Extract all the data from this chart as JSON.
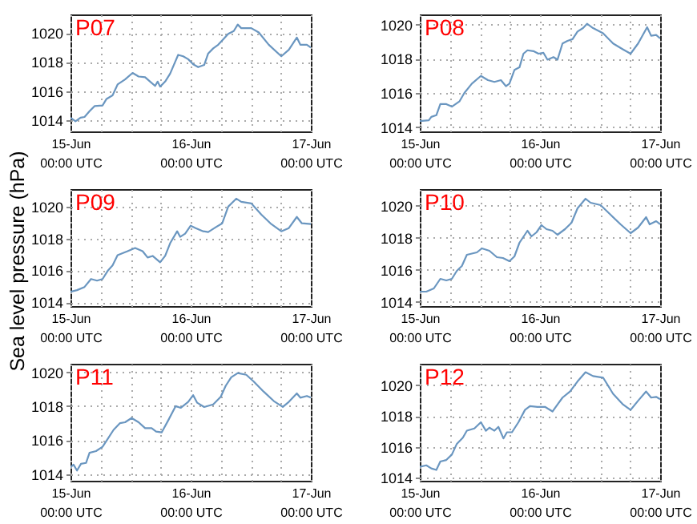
{
  "chart_data": [
    {
      "type": "line",
      "title": "P07",
      "xlim": [
        "--06-15T00:00",
        "--06-17T00:00"
      ],
      "xticks": [
        {
          "value": "--06-15T00:00",
          "label": "15-Jun\n00:00 UTC"
        },
        {
          "value": "--06-15T06:00",
          "label": null
        },
        {
          "value": "--06-15T12:00",
          "label": null
        },
        {
          "value": "--06-15T18:00",
          "label": null
        },
        {
          "value": "--06-16T00:00",
          "label": "16-Jun\n00:00 UTC"
        },
        {
          "value": "--06-16T06:00",
          "label": null
        },
        {
          "value": "--06-16T12:00",
          "label": null
        },
        {
          "value": "--06-16T18:00",
          "label": null
        },
        {
          "value": "--06-17T00:00",
          "label": "17-Jun\n00:00 UTC"
        }
      ],
      "ylim": [
        1013.2,
        1021.3
      ],
      "yticks": [
        1014,
        1016,
        1018,
        1020
      ],
      "grid": true,
      "x": [
        "--06-15T00:00",
        "--06-15T01:00",
        "--06-15T02:00",
        "--06-15T02:48",
        "--06-15T03:48",
        "--06-15T04:48",
        "--06-15T06:24",
        "--06-15T07:12",
        "--06-15T08:24",
        "--06-15T09:24",
        "--06-15T10:54",
        "--06-15T12:24",
        "--06-15T13:36",
        "--06-15T14:54",
        "--06-15T15:54",
        "--06-15T16:54",
        "--06-15T17:24",
        "--06-15T17:54",
        "--06-15T18:54",
        "--06-15T19:54",
        "--06-15T20:42",
        "--06-15T21:30",
        "--06-15T22:30",
        "--06-15T23:30",
        "--06-16T00:30",
        "--06-16T01:30",
        "--06-16T02:42",
        "--06-16T03:30",
        "--06-16T04:30",
        "--06-16T05:30",
        "--06-16T06:42",
        "--06-16T07:30",
        "--06-16T08:36",
        "--06-16T09:24",
        "--06-16T10:06",
        "--06-16T12:06",
        "--06-16T13:36",
        "--06-16T15:36",
        "--06-16T18:06",
        "--06-16T19:36",
        "--06-16T21:12",
        "--06-16T21:54",
        "--06-16T23:12",
        "--06-17T00:00"
      ],
      "series": [
        {
          "color": "#6a96c0",
          "values": [
            1014.15,
            1013.9,
            1014.15,
            1014.2,
            1014.6,
            1014.95,
            1015.0,
            1015.45,
            1015.7,
            1016.45,
            1016.8,
            1017.25,
            1017.0,
            1016.95,
            1016.65,
            1016.35,
            1016.65,
            1016.3,
            1016.65,
            1017.2,
            1017.85,
            1018.5,
            1018.4,
            1018.2,
            1017.85,
            1017.65,
            1017.8,
            1018.6,
            1018.95,
            1019.2,
            1019.65,
            1019.95,
            1020.15,
            1020.6,
            1020.35,
            1020.35,
            1020.05,
            1019.2,
            1018.4,
            1018.85,
            1019.7,
            1019.2,
            1019.2,
            1019.0
          ]
        }
      ]
    },
    {
      "type": "line",
      "title": "P08",
      "xlim": [
        "--06-15T00:00",
        "--06-17T00:00"
      ],
      "xticks": [
        {
          "value": "--06-15T00:00",
          "label": "15-Jun\n00:00 UTC"
        },
        {
          "value": "--06-15T06:00",
          "label": null
        },
        {
          "value": "--06-15T12:00",
          "label": null
        },
        {
          "value": "--06-15T18:00",
          "label": null
        },
        {
          "value": "--06-16T00:00",
          "label": "16-Jun\n00:00 UTC"
        },
        {
          "value": "--06-16T06:00",
          "label": null
        },
        {
          "value": "--06-16T12:00",
          "label": null
        },
        {
          "value": "--06-16T18:00",
          "label": null
        },
        {
          "value": "--06-17T00:00",
          "label": "17-Jun\n00:00 UTC"
        }
      ],
      "ylim": [
        1013.75,
        1020.6
      ],
      "yticks": [
        1014,
        1016,
        1018,
        1020
      ],
      "grid": true,
      "x": [
        "--06-15T00:00",
        "--06-15T01:48",
        "--06-15T02:18",
        "--06-15T03:18",
        "--06-15T04:06",
        "--06-15T05:18",
        "--06-15T06:24",
        "--06-15T07:54",
        "--06-15T08:54",
        "--06-15T10:24",
        "--06-15T12:12",
        "--06-15T13:36",
        "--06-15T14:54",
        "--06-15T16:12",
        "--06-15T17:12",
        "--06-15T17:54",
        "--06-15T18:54",
        "--06-15T19:54",
        "--06-15T20:42",
        "--06-15T21:30",
        "--06-15T22:42",
        "--06-15T23:42",
        "--06-16T00:42",
        "--06-16T01:30",
        "--06-16T02:42",
        "--06-16T03:30",
        "--06-16T04:30",
        "--06-16T05:30",
        "--06-16T06:30",
        "--06-16T07:30",
        "--06-16T08:36",
        "--06-16T09:24",
        "--06-16T10:36",
        "--06-16T12:36",
        "--06-16T14:36",
        "--06-16T16:36",
        "--06-16T18:06",
        "--06-16T19:36",
        "--06-16T21:24",
        "--06-16T22:12",
        "--06-16T23:12",
        "--06-17T00:00"
      ],
      "series": [
        {
          "color": "#6a96c0",
          "values": [
            1014.35,
            1014.4,
            1014.6,
            1014.7,
            1015.35,
            1015.35,
            1015.2,
            1015.5,
            1016.0,
            1016.55,
            1017.0,
            1016.75,
            1016.65,
            1016.75,
            1016.4,
            1016.55,
            1017.35,
            1017.5,
            1018.3,
            1018.5,
            1018.45,
            1018.3,
            1018.35,
            1017.95,
            1018.1,
            1017.95,
            1018.9,
            1019.05,
            1019.15,
            1019.6,
            1019.8,
            1020.05,
            1019.8,
            1019.5,
            1018.9,
            1018.55,
            1018.3,
            1018.9,
            1019.85,
            1019.35,
            1019.4,
            1019.2
          ]
        }
      ]
    },
    {
      "type": "line",
      "title": "P09",
      "ylabel": "Sea level pressure (hPa)",
      "xlim": [
        "--06-15T00:00",
        "--06-17T00:00"
      ],
      "xticks": [
        {
          "value": "--06-15T00:00",
          "label": "15-Jun\n00:00 UTC"
        },
        {
          "value": "--06-15T06:00",
          "label": null
        },
        {
          "value": "--06-15T12:00",
          "label": null
        },
        {
          "value": "--06-15T18:00",
          "label": null
        },
        {
          "value": "--06-16T00:00",
          "label": "16-Jun\n00:00 UTC"
        },
        {
          "value": "--06-16T06:00",
          "label": null
        },
        {
          "value": "--06-16T12:00",
          "label": null
        },
        {
          "value": "--06-16T18:00",
          "label": null
        },
        {
          "value": "--06-17T00:00",
          "label": "17-Jun\n00:00 UTC"
        }
      ],
      "ylim": [
        1013.75,
        1021.1
      ],
      "yticks": [
        1014,
        1016,
        1018,
        1020
      ],
      "grid": true,
      "x": [
        "--06-15T00:00",
        "--06-15T01:18",
        "--06-15T02:48",
        "--06-15T04:06",
        "--06-15T05:18",
        "--06-15T06:24",
        "--06-15T07:24",
        "--06-15T08:24",
        "--06-15T09:24",
        "--06-15T11:24",
        "--06-15T12:54",
        "--06-15T14:24",
        "--06-15T15:24",
        "--06-15T16:24",
        "--06-15T17:54",
        "--06-15T18:54",
        "--06-15T19:54",
        "--06-15T21:18",
        "--06-15T21:54",
        "--06-15T22:54",
        "--06-16T00:00",
        "--06-16T01:00",
        "--06-16T02:30",
        "--06-16T03:30",
        "--06-16T05:00",
        "--06-16T06:18",
        "--06-16T07:30",
        "--06-16T09:06",
        "--06-16T10:06",
        "--06-16T12:06",
        "--06-16T14:06",
        "--06-16T16:06",
        "--06-16T18:06",
        "--06-16T19:36",
        "--06-16T21:12",
        "--06-16T22:12",
        "--06-17T00:00"
      ],
      "series": [
        {
          "color": "#6a96c0",
          "values": [
            1014.65,
            1014.75,
            1014.95,
            1015.45,
            1015.35,
            1015.45,
            1015.95,
            1016.3,
            1016.95,
            1017.2,
            1017.4,
            1017.2,
            1016.8,
            1016.9,
            1016.5,
            1016.9,
            1017.7,
            1018.45,
            1018.1,
            1018.3,
            1018.8,
            1018.65,
            1018.45,
            1018.4,
            1018.7,
            1018.95,
            1020.0,
            1020.5,
            1020.3,
            1020.2,
            1019.5,
            1018.9,
            1018.45,
            1018.65,
            1019.35,
            1018.95,
            1018.9
          ]
        }
      ]
    },
    {
      "type": "line",
      "title": "P10",
      "xlim": [
        "--06-15T00:00",
        "--06-17T00:00"
      ],
      "xticks": [
        {
          "value": "--06-15T00:00",
          "label": "15-Jun\n00:00 UTC"
        },
        {
          "value": "--06-15T06:00",
          "label": null
        },
        {
          "value": "--06-15T12:00",
          "label": null
        },
        {
          "value": "--06-15T18:00",
          "label": null
        },
        {
          "value": "--06-16T00:00",
          "label": "16-Jun\n00:00 UTC"
        },
        {
          "value": "--06-16T06:00",
          "label": null
        },
        {
          "value": "--06-16T12:00",
          "label": null
        },
        {
          "value": "--06-16T18:00",
          "label": null
        },
        {
          "value": "--06-17T00:00",
          "label": "17-Jun\n00:00 UTC"
        }
      ],
      "ylim": [
        1013.75,
        1021.05
      ],
      "yticks": [
        1014,
        1016,
        1018,
        1020
      ],
      "grid": true,
      "x": [
        "--06-15T00:00",
        "--06-15T01:18",
        "--06-15T02:48",
        "--06-15T04:06",
        "--06-15T05:18",
        "--06-15T06:24",
        "--06-15T07:24",
        "--06-15T08:24",
        "--06-15T09:24",
        "--06-15T11:24",
        "--06-15T12:24",
        "--06-15T13:54",
        "--06-15T15:24",
        "--06-15T16:36",
        "--06-15T17:54",
        "--06-15T18:54",
        "--06-15T19:54",
        "--06-15T21:30",
        "--06-15T22:18",
        "--06-15T23:18",
        "--06-16T00:18",
        "--06-16T01:18",
        "--06-16T02:30",
        "--06-16T03:30",
        "--06-16T05:00",
        "--06-16T06:18",
        "--06-16T07:30",
        "--06-16T09:06",
        "--06-16T10:06",
        "--06-16T12:06",
        "--06-16T14:06",
        "--06-16T16:06",
        "--06-16T18:06",
        "--06-16T19:36",
        "--06-16T21:12",
        "--06-16T21:54",
        "--06-16T23:12",
        "--06-17T00:00"
      ],
      "series": [
        {
          "color": "#6a96c0",
          "values": [
            1014.65,
            1014.65,
            1014.85,
            1015.45,
            1015.35,
            1015.45,
            1015.95,
            1016.25,
            1016.95,
            1017.1,
            1017.35,
            1017.2,
            1016.8,
            1016.75,
            1016.55,
            1016.85,
            1017.7,
            1018.45,
            1018.1,
            1018.35,
            1018.8,
            1018.55,
            1018.45,
            1018.2,
            1018.55,
            1018.95,
            1019.85,
            1020.45,
            1020.2,
            1020.05,
            1019.45,
            1018.85,
            1018.3,
            1018.65,
            1019.3,
            1018.85,
            1019.05,
            1018.85
          ]
        }
      ]
    },
    {
      "type": "line",
      "title": "P11",
      "xlim": [
        "--06-15T00:00",
        "--06-17T00:00"
      ],
      "xticks": [
        {
          "value": "--06-15T00:00",
          "label": "15-Jun\n00:00 UTC"
        },
        {
          "value": "--06-15T06:00",
          "label": null
        },
        {
          "value": "--06-15T12:00",
          "label": null
        },
        {
          "value": "--06-15T18:00",
          "label": null
        },
        {
          "value": "--06-16T00:00",
          "label": "16-Jun\n00:00 UTC"
        },
        {
          "value": "--06-16T06:00",
          "label": null
        },
        {
          "value": "--06-16T12:00",
          "label": null
        },
        {
          "value": "--06-16T18:00",
          "label": null
        },
        {
          "value": "--06-17T00:00",
          "label": "17-Jun\n00:00 UTC"
        }
      ],
      "ylim": [
        1013.6,
        1020.5
      ],
      "yticks": [
        1014,
        1016,
        1018,
        1020
      ],
      "grid": true,
      "x": [
        "--06-15T00:00",
        "--06-15T00:36",
        "--06-15T01:18",
        "--06-15T02:06",
        "--06-15T03:06",
        "--06-15T03:48",
        "--06-15T05:06",
        "--06-15T06:24",
        "--06-15T07:24",
        "--06-15T08:36",
        "--06-15T09:54",
        "--06-15T10:54",
        "--06-15T12:12",
        "--06-15T13:36",
        "--06-15T14:54",
        "--06-15T16:12",
        "--06-15T17:06",
        "--06-15T18:12",
        "--06-15T19:30",
        "--06-15T21:00",
        "--06-15T22:00",
        "--06-15T23:30",
        "--06-16T00:30",
        "--06-16T01:18",
        "--06-16T02:42",
        "--06-16T04:30",
        "--06-16T06:00",
        "--06-16T07:00",
        "--06-16T08:06",
        "--06-16T09:24",
        "--06-16T11:06",
        "--06-16T12:36",
        "--06-16T14:36",
        "--06-16T16:36",
        "--06-16T18:24",
        "--06-16T19:36",
        "--06-16T21:12",
        "--06-16T21:54",
        "--06-16T23:12",
        "--06-17T00:00"
      ],
      "series": [
        {
          "color": "#6a96c0",
          "values": [
            1014.4,
            1014.55,
            1014.2,
            1014.6,
            1014.65,
            1015.25,
            1015.35,
            1015.6,
            1016.05,
            1016.6,
            1017.0,
            1017.05,
            1017.3,
            1017.05,
            1016.7,
            1016.7,
            1016.5,
            1016.45,
            1017.15,
            1018.0,
            1017.9,
            1018.25,
            1018.65,
            1018.2,
            1017.95,
            1018.1,
            1018.55,
            1019.2,
            1019.7,
            1019.95,
            1019.85,
            1019.45,
            1018.85,
            1018.3,
            1017.95,
            1018.25,
            1018.75,
            1018.5,
            1018.6,
            1018.5
          ]
        }
      ]
    },
    {
      "type": "line",
      "title": "P12",
      "xlim": [
        "--06-15T00:00",
        "--06-17T00:00"
      ],
      "xticks": [
        {
          "value": "--06-15T00:00",
          "label": "15-Jun\n00:00 UTC"
        },
        {
          "value": "--06-15T06:00",
          "label": null
        },
        {
          "value": "--06-15T12:00",
          "label": null
        },
        {
          "value": "--06-15T18:00",
          "label": null
        },
        {
          "value": "--06-16T00:00",
          "label": "16-Jun\n00:00 UTC"
        },
        {
          "value": "--06-16T06:00",
          "label": null
        },
        {
          "value": "--06-16T12:00",
          "label": null
        },
        {
          "value": "--06-16T18:00",
          "label": null
        },
        {
          "value": "--06-17T00:00",
          "label": "17-Jun\n00:00 UTC"
        }
      ],
      "ylim": [
        1013.8,
        1021.4
      ],
      "yticks": [
        1014,
        1016,
        1018,
        1020
      ],
      "grid": true,
      "x": [
        "--06-15T00:00",
        "--06-15T01:18",
        "--06-15T02:18",
        "--06-15T03:18",
        "--06-15T04:06",
        "--06-15T05:18",
        "--06-15T06:24",
        "--06-15T07:24",
        "--06-15T08:36",
        "--06-15T09:24",
        "--06-15T10:54",
        "--06-15T12:12",
        "--06-15T13:12",
        "--06-15T13:54",
        "--06-15T14:54",
        "--06-15T15:42",
        "--06-15T16:42",
        "--06-15T17:24",
        "--06-15T18:24",
        "--06-15T19:42",
        "--06-15T21:00",
        "--06-15T22:00",
        "--06-15T23:30",
        "--06-16T01:00",
        "--06-16T02:30",
        "--06-16T03:30",
        "--06-16T04:30",
        "--06-16T06:00",
        "--06-16T07:30",
        "--06-16T09:06",
        "--06-16T10:36",
        "--06-16T12:36",
        "--06-16T14:36",
        "--06-16T16:36",
        "--06-16T18:06",
        "--06-16T19:36",
        "--06-16T21:12",
        "--06-16T22:12",
        "--06-16T23:12",
        "--06-17T00:00"
      ],
      "series": [
        {
          "color": "#6a96c0",
          "values": [
            1014.7,
            1014.8,
            1014.6,
            1014.5,
            1015.05,
            1015.15,
            1015.5,
            1016.2,
            1016.6,
            1017.05,
            1017.2,
            1017.6,
            1017.05,
            1017.25,
            1017.05,
            1017.3,
            1016.55,
            1016.95,
            1016.95,
            1017.6,
            1018.4,
            1018.65,
            1018.6,
            1018.6,
            1018.3,
            1018.75,
            1019.2,
            1019.6,
            1020.25,
            1020.85,
            1020.6,
            1020.5,
            1019.45,
            1018.75,
            1018.4,
            1019.0,
            1019.6,
            1019.2,
            1019.25,
            1019.1
          ]
        }
      ]
    }
  ]
}
